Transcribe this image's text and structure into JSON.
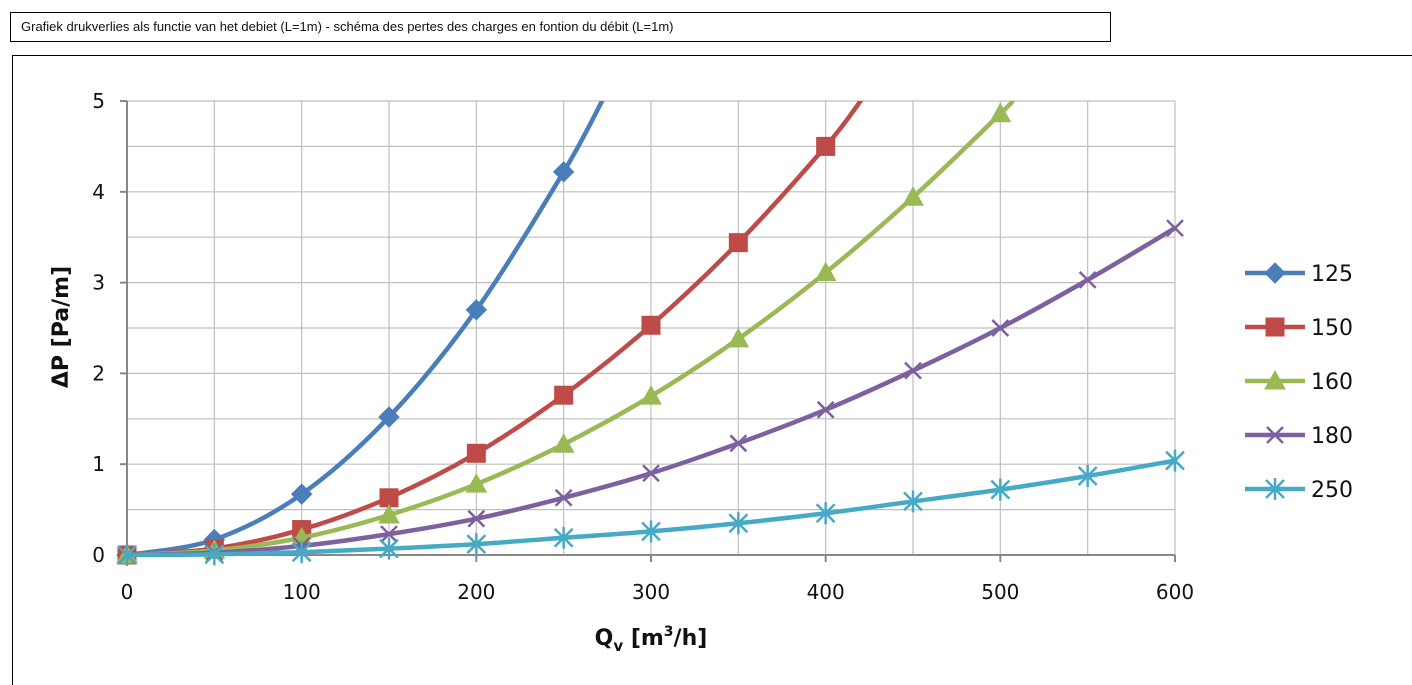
{
  "page_title": "Grafiek drukverlies als functie van het debiet (L=1m) - schéma des pertes des charges en fontion du débit (L=1m)",
  "chart_data": {
    "type": "line",
    "title": "",
    "xlabel": "Q",
    "xlabel_sub": "v",
    "xlabel_units_pre": " [m",
    "xlabel_units_sup": "3",
    "xlabel_units_post": "/h]",
    "ylabel": "ΔP [Pa/m]",
    "xlim": [
      0,
      600
    ],
    "ylim": [
      0,
      5
    ],
    "x_ticks": [
      "0",
      "100",
      "200",
      "300",
      "400",
      "500",
      "600"
    ],
    "y_ticks": [
      "0",
      "1",
      "2",
      "3",
      "4",
      "5"
    ],
    "x_tick_values": [
      0,
      100,
      200,
      300,
      400,
      500,
      600
    ],
    "y_tick_values": [
      0,
      1,
      2,
      3,
      4,
      5
    ],
    "grid": true,
    "legend_position": "right",
    "x": [
      0,
      50,
      100,
      150,
      200,
      250,
      300,
      350,
      400,
      450,
      500,
      550,
      600
    ],
    "series": [
      {
        "name": "125",
        "color": "#4a7ebb",
        "marker": "diamond",
        "values": [
          0,
          0.17,
          0.67,
          1.52,
          2.7,
          4.22,
          null,
          null,
          null,
          null,
          null,
          null,
          null
        ],
        "extend_to": [
          272,
          5.0
        ]
      },
      {
        "name": "150",
        "color": "#be4b48",
        "marker": "square",
        "values": [
          0,
          0.07,
          0.28,
          0.63,
          1.12,
          1.76,
          2.53,
          3.44,
          4.5,
          null,
          null,
          null,
          null
        ],
        "extend_to": [
          420,
          5.0
        ]
      },
      {
        "name": "160",
        "color": "#98b954",
        "marker": "triangle",
        "values": [
          0,
          0.05,
          0.19,
          0.44,
          0.78,
          1.22,
          1.75,
          2.38,
          3.11,
          3.94,
          4.86,
          null,
          null
        ],
        "extend_to": [
          507,
          5.0
        ]
      },
      {
        "name": "180",
        "color": "#7d60a0",
        "marker": "x",
        "values": [
          0,
          0.025,
          0.1,
          0.23,
          0.4,
          0.63,
          0.9,
          1.23,
          1.6,
          2.03,
          2.5,
          3.03,
          3.6
        ]
      },
      {
        "name": "250",
        "color": "#46aac5",
        "marker": "star",
        "values": [
          0,
          0.007,
          0.03,
          0.07,
          0.12,
          0.19,
          0.26,
          0.35,
          0.46,
          0.59,
          0.72,
          0.87,
          1.04
        ]
      }
    ]
  }
}
